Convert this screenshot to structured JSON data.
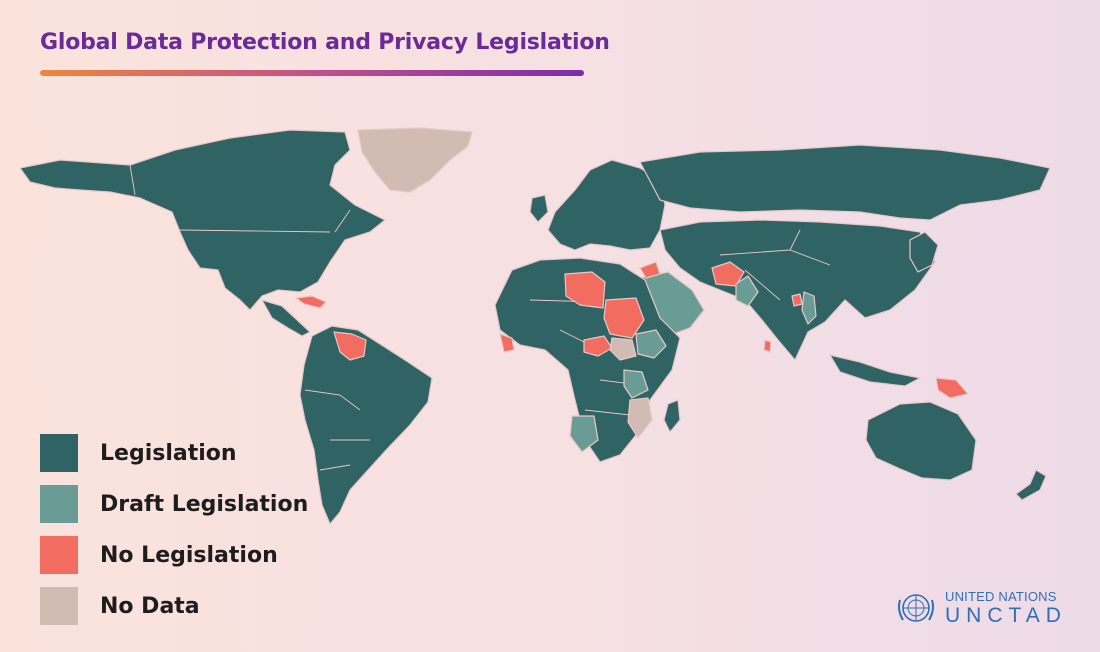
{
  "title": "Global Data Protection and Privacy Legislation",
  "colors": {
    "legislation": "#2f6364",
    "draft": "#6a9c96",
    "no_legislation": "#f26d5f",
    "no_data": "#d1bbb2"
  },
  "legend": [
    {
      "label": "Legislation",
      "color": "#2f6364"
    },
    {
      "label": "Draft Legislation",
      "color": "#6a9c96"
    },
    {
      "label": "No Legislation",
      "color": "#f26d5f"
    },
    {
      "label": "No Data",
      "color": "#d1bbb2"
    }
  ],
  "logo": {
    "icon": "un-emblem-icon",
    "line1": "UNITED NATIONS",
    "line2": "UNCTAD"
  }
}
